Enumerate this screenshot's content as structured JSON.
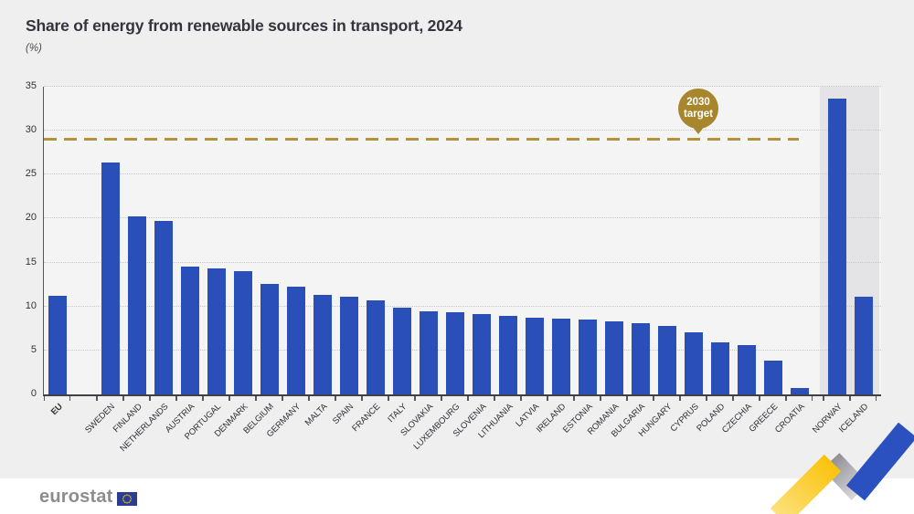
{
  "header": {
    "title": "Share of energy from renewable sources in transport, 2024",
    "subtitle": "(%)"
  },
  "target_badge": {
    "line1": "2030",
    "line2": "target"
  },
  "footer": {
    "logo_text": "eurostat"
  },
  "colors": {
    "bar": "#2b4fb8",
    "target_gold": "#b3923a",
    "badge_gold": "#a8862e",
    "background": "#efeff0",
    "plot_background": "#f4f4f5",
    "efta_band": "#e4e4e6",
    "footer_background": "#ffffff",
    "title_text": "#32353c",
    "logo_gray": "#8d8d8d",
    "eu_flag_blue": "#2b3c93",
    "eu_star_yellow": "#ffcc00"
  },
  "chart_data": {
    "type": "bar",
    "title": "Share of energy from renewable sources in transport, 2024",
    "unit_label": "(%)",
    "xlabel": "",
    "ylabel": "(%)",
    "ylim": [
      0,
      35
    ],
    "yticks": [
      0,
      5,
      10,
      15,
      20,
      25,
      30,
      35
    ],
    "grid": "dotted-horizontal",
    "legend_position": "none",
    "bar_color": "#2b4fb8",
    "target_line": {
      "value": 29,
      "label": "2030 target",
      "style": "dashed",
      "color": "#b3923a"
    },
    "groups": [
      {
        "id": "eu-aggregate",
        "highlight": false,
        "bars": [
          {
            "label": "EU",
            "value": 11.2,
            "emphasis": true
          }
        ]
      },
      {
        "id": "member-states",
        "highlight": false,
        "bars": [
          {
            "label": "SWEDEN",
            "value": 26.4
          },
          {
            "label": "FINLAND",
            "value": 20.3
          },
          {
            "label": "NETHERLANDS",
            "value": 19.7
          },
          {
            "label": "AUSTRIA",
            "value": 14.5
          },
          {
            "label": "PORTUGAL",
            "value": 14.3
          },
          {
            "label": "DENMARK",
            "value": 14.0
          },
          {
            "label": "BELGIUM",
            "value": 12.6
          },
          {
            "label": "GERMANY",
            "value": 12.3
          },
          {
            "label": "MALTA",
            "value": 11.3
          },
          {
            "label": "SPAIN",
            "value": 11.1
          },
          {
            "label": "FRANCE",
            "value": 10.7
          },
          {
            "label": "ITALY",
            "value": 9.9
          },
          {
            "label": "SLOVAKIA",
            "value": 9.5
          },
          {
            "label": "LUXEMBOURG",
            "value": 9.3
          },
          {
            "label": "SLOVENIA",
            "value": 9.1
          },
          {
            "label": "LITHUANIA",
            "value": 8.9
          },
          {
            "label": "LATVIA",
            "value": 8.7
          },
          {
            "label": "IRELAND",
            "value": 8.6
          },
          {
            "label": "ESTONIA",
            "value": 8.5
          },
          {
            "label": "ROMANIA",
            "value": 8.3
          },
          {
            "label": "BULGARIA",
            "value": 8.1
          },
          {
            "label": "HUNGARY",
            "value": 7.8
          },
          {
            "label": "CYPRUS",
            "value": 7.1
          },
          {
            "label": "POLAND",
            "value": 5.9
          },
          {
            "label": "CZECHIA",
            "value": 5.6
          },
          {
            "label": "GREECE",
            "value": 3.8
          },
          {
            "label": "CROATIA",
            "value": 0.7
          }
        ]
      },
      {
        "id": "efta-countries",
        "highlight": true,
        "bars": [
          {
            "label": "NORWAY",
            "value": 33.6
          },
          {
            "label": "ICELAND",
            "value": 11.1
          }
        ]
      }
    ]
  }
}
